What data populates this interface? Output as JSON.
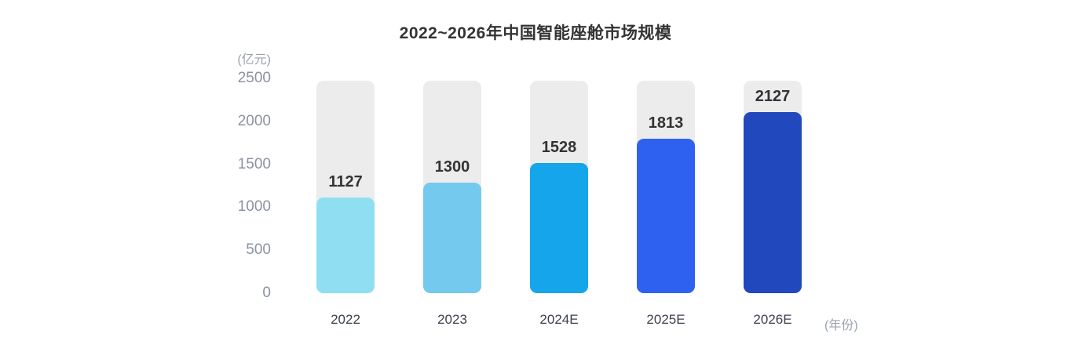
{
  "chart_data": {
    "type": "bar",
    "title": "2022~2026年中国智能座舱市场规模",
    "categories": [
      "2022",
      "2023",
      "2024E",
      "2025E",
      "2026E"
    ],
    "values": [
      1127,
      1300,
      1528,
      1813,
      2127
    ],
    "xlabel": "(年份)",
    "ylabel": "(亿元)",
    "ylim": [
      0,
      2500
    ],
    "yticks": [
      "2500",
      "2000",
      "1500",
      "1000",
      "500",
      "0"
    ],
    "grid": false,
    "legend": false,
    "bar_colors": [
      "#90DEF2",
      "#74C9EF",
      "#14A5EA",
      "#2E61F0",
      "#2149BD"
    ],
    "track_color": "#ECECEC",
    "track_max": 2500
  }
}
